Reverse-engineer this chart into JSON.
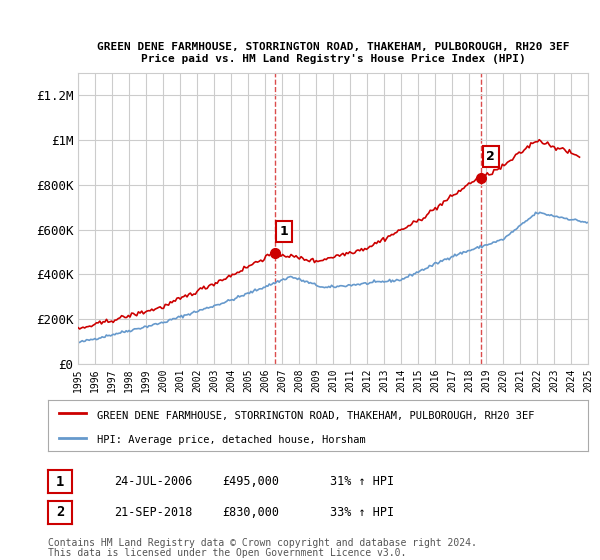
{
  "title_line1": "GREEN DENE FARMHOUSE, STORRINGTON ROAD, THAKEHAM, PULBOROUGH, RH20 3EF",
  "title_line2": "Price paid vs. HM Land Registry's House Price Index (HPI)",
  "ylabel": "",
  "xlabel": "",
  "ylim": [
    0,
    1300000
  ],
  "yticks": [
    0,
    200000,
    400000,
    600000,
    800000,
    1000000,
    1200000
  ],
  "ytick_labels": [
    "£0",
    "£200K",
    "£400K",
    "£600K",
    "£800K",
    "£1M",
    "£1.2M"
  ],
  "sale1": {
    "date_num": 2006.56,
    "price": 495000,
    "label": "1"
  },
  "sale2": {
    "date_num": 2018.72,
    "price": 830000,
    "label": "2"
  },
  "hpi_color": "#6699cc",
  "price_color": "#cc0000",
  "marker_color": "#cc0000",
  "bg_color": "#ffffff",
  "grid_color": "#cccccc",
  "legend_items": [
    "GREEN DENE FARMHOUSE, STORRINGTON ROAD, THAKEHAM, PULBOROUGH, RH20 3EF",
    "HPI: Average price, detached house, Horsham"
  ],
  "note_line1": "Contains HM Land Registry data © Crown copyright and database right 2024.",
  "note_line2": "This data is licensed under the Open Government Licence v3.0.",
  "table_rows": [
    [
      "1",
      "24-JUL-2006",
      "£495,000",
      "31% ↑ HPI"
    ],
    [
      "2",
      "21-SEP-2018",
      "£830,000",
      "33% ↑ HPI"
    ]
  ]
}
